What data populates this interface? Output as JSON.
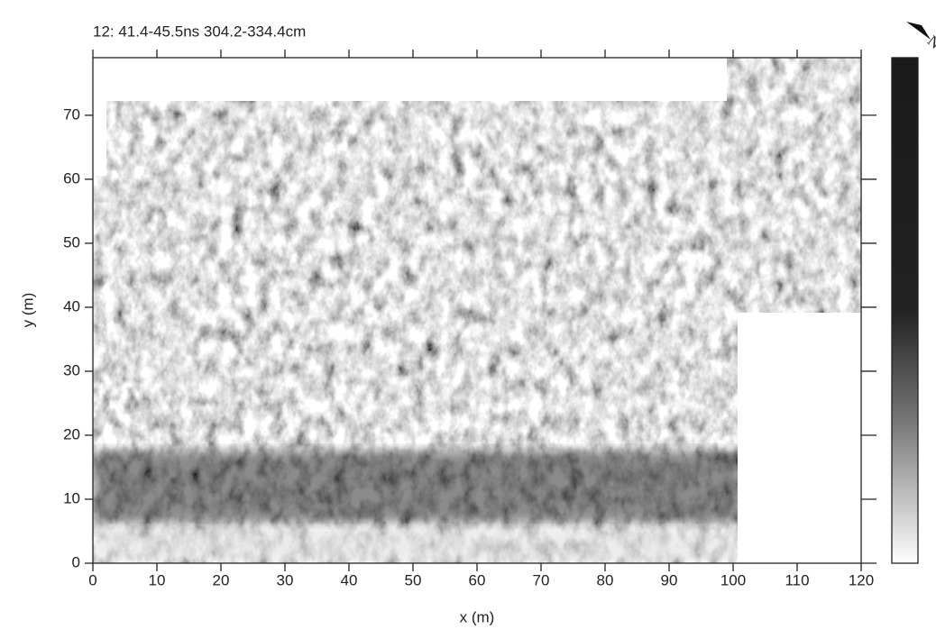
{
  "chart_data": {
    "type": "heatmap",
    "title": "12:  41.4-45.5ns  304.2-334.4cm",
    "x_label": "x (m)",
    "y_label": "y (m)",
    "xlim": [
      0,
      120
    ],
    "ylim": [
      0,
      79
    ],
    "xticks": [
      0,
      10,
      20,
      30,
      40,
      50,
      60,
      70,
      80,
      90,
      100,
      110,
      120
    ],
    "yticks": [
      0,
      10,
      20,
      30,
      40,
      50,
      60,
      70
    ],
    "north": "N",
    "colormap": "grayscale"
  }
}
